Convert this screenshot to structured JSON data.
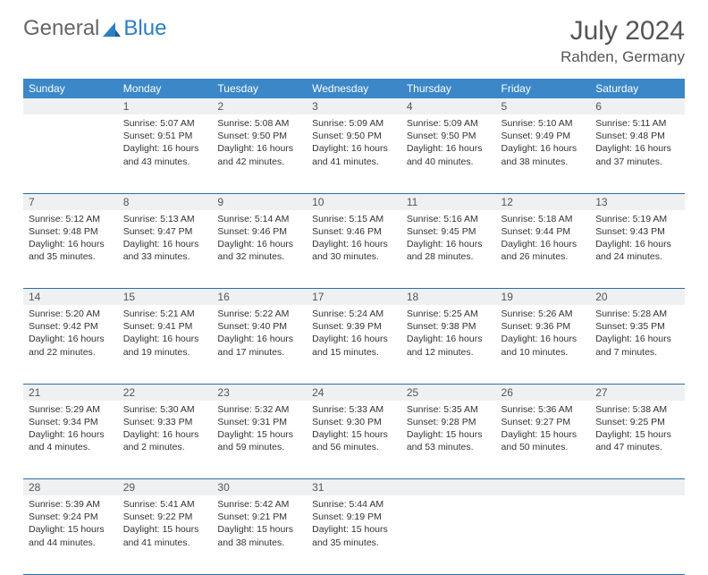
{
  "brand": {
    "part1": "General",
    "part2": "Blue",
    "accent": "#2b7fc3"
  },
  "title": "July 2024",
  "location": "Rahden, Germany",
  "header_bg": "#3b87c8",
  "daynum_bg": "#eef0f1",
  "border_color": "#2b6fa8",
  "weekdays": [
    "Sunday",
    "Monday",
    "Tuesday",
    "Wednesday",
    "Thursday",
    "Friday",
    "Saturday"
  ],
  "weeks": [
    [
      null,
      {
        "d": "1",
        "sr": "Sunrise: 5:07 AM",
        "ss": "Sunset: 9:51 PM",
        "dl": "Daylight: 16 hours and 43 minutes."
      },
      {
        "d": "2",
        "sr": "Sunrise: 5:08 AM",
        "ss": "Sunset: 9:50 PM",
        "dl": "Daylight: 16 hours and 42 minutes."
      },
      {
        "d": "3",
        "sr": "Sunrise: 5:09 AM",
        "ss": "Sunset: 9:50 PM",
        "dl": "Daylight: 16 hours and 41 minutes."
      },
      {
        "d": "4",
        "sr": "Sunrise: 5:09 AM",
        "ss": "Sunset: 9:50 PM",
        "dl": "Daylight: 16 hours and 40 minutes."
      },
      {
        "d": "5",
        "sr": "Sunrise: 5:10 AM",
        "ss": "Sunset: 9:49 PM",
        "dl": "Daylight: 16 hours and 38 minutes."
      },
      {
        "d": "6",
        "sr": "Sunrise: 5:11 AM",
        "ss": "Sunset: 9:48 PM",
        "dl": "Daylight: 16 hours and 37 minutes."
      }
    ],
    [
      {
        "d": "7",
        "sr": "Sunrise: 5:12 AM",
        "ss": "Sunset: 9:48 PM",
        "dl": "Daylight: 16 hours and 35 minutes."
      },
      {
        "d": "8",
        "sr": "Sunrise: 5:13 AM",
        "ss": "Sunset: 9:47 PM",
        "dl": "Daylight: 16 hours and 33 minutes."
      },
      {
        "d": "9",
        "sr": "Sunrise: 5:14 AM",
        "ss": "Sunset: 9:46 PM",
        "dl": "Daylight: 16 hours and 32 minutes."
      },
      {
        "d": "10",
        "sr": "Sunrise: 5:15 AM",
        "ss": "Sunset: 9:46 PM",
        "dl": "Daylight: 16 hours and 30 minutes."
      },
      {
        "d": "11",
        "sr": "Sunrise: 5:16 AM",
        "ss": "Sunset: 9:45 PM",
        "dl": "Daylight: 16 hours and 28 minutes."
      },
      {
        "d": "12",
        "sr": "Sunrise: 5:18 AM",
        "ss": "Sunset: 9:44 PM",
        "dl": "Daylight: 16 hours and 26 minutes."
      },
      {
        "d": "13",
        "sr": "Sunrise: 5:19 AM",
        "ss": "Sunset: 9:43 PM",
        "dl": "Daylight: 16 hours and 24 minutes."
      }
    ],
    [
      {
        "d": "14",
        "sr": "Sunrise: 5:20 AM",
        "ss": "Sunset: 9:42 PM",
        "dl": "Daylight: 16 hours and 22 minutes."
      },
      {
        "d": "15",
        "sr": "Sunrise: 5:21 AM",
        "ss": "Sunset: 9:41 PM",
        "dl": "Daylight: 16 hours and 19 minutes."
      },
      {
        "d": "16",
        "sr": "Sunrise: 5:22 AM",
        "ss": "Sunset: 9:40 PM",
        "dl": "Daylight: 16 hours and 17 minutes."
      },
      {
        "d": "17",
        "sr": "Sunrise: 5:24 AM",
        "ss": "Sunset: 9:39 PM",
        "dl": "Daylight: 16 hours and 15 minutes."
      },
      {
        "d": "18",
        "sr": "Sunrise: 5:25 AM",
        "ss": "Sunset: 9:38 PM",
        "dl": "Daylight: 16 hours and 12 minutes."
      },
      {
        "d": "19",
        "sr": "Sunrise: 5:26 AM",
        "ss": "Sunset: 9:36 PM",
        "dl": "Daylight: 16 hours and 10 minutes."
      },
      {
        "d": "20",
        "sr": "Sunrise: 5:28 AM",
        "ss": "Sunset: 9:35 PM",
        "dl": "Daylight: 16 hours and 7 minutes."
      }
    ],
    [
      {
        "d": "21",
        "sr": "Sunrise: 5:29 AM",
        "ss": "Sunset: 9:34 PM",
        "dl": "Daylight: 16 hours and 4 minutes."
      },
      {
        "d": "22",
        "sr": "Sunrise: 5:30 AM",
        "ss": "Sunset: 9:33 PM",
        "dl": "Daylight: 16 hours and 2 minutes."
      },
      {
        "d": "23",
        "sr": "Sunrise: 5:32 AM",
        "ss": "Sunset: 9:31 PM",
        "dl": "Daylight: 15 hours and 59 minutes."
      },
      {
        "d": "24",
        "sr": "Sunrise: 5:33 AM",
        "ss": "Sunset: 9:30 PM",
        "dl": "Daylight: 15 hours and 56 minutes."
      },
      {
        "d": "25",
        "sr": "Sunrise: 5:35 AM",
        "ss": "Sunset: 9:28 PM",
        "dl": "Daylight: 15 hours and 53 minutes."
      },
      {
        "d": "26",
        "sr": "Sunrise: 5:36 AM",
        "ss": "Sunset: 9:27 PM",
        "dl": "Daylight: 15 hours and 50 minutes."
      },
      {
        "d": "27",
        "sr": "Sunrise: 5:38 AM",
        "ss": "Sunset: 9:25 PM",
        "dl": "Daylight: 15 hours and 47 minutes."
      }
    ],
    [
      {
        "d": "28",
        "sr": "Sunrise: 5:39 AM",
        "ss": "Sunset: 9:24 PM",
        "dl": "Daylight: 15 hours and 44 minutes."
      },
      {
        "d": "29",
        "sr": "Sunrise: 5:41 AM",
        "ss": "Sunset: 9:22 PM",
        "dl": "Daylight: 15 hours and 41 minutes."
      },
      {
        "d": "30",
        "sr": "Sunrise: 5:42 AM",
        "ss": "Sunset: 9:21 PM",
        "dl": "Daylight: 15 hours and 38 minutes."
      },
      {
        "d": "31",
        "sr": "Sunrise: 5:44 AM",
        "ss": "Sunset: 9:19 PM",
        "dl": "Daylight: 15 hours and 35 minutes."
      },
      null,
      null,
      null
    ]
  ]
}
